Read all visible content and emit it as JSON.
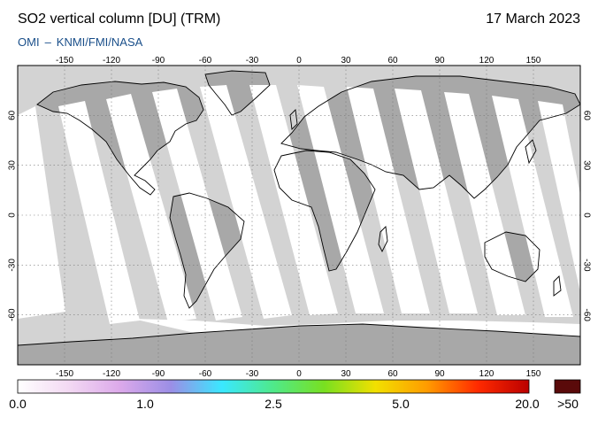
{
  "header": {
    "title": "SO2 vertical column [DU] (TRM)",
    "date": "17 March 2023",
    "credit_left": "OMI",
    "credit_sep": "–",
    "credit_right": "KNMI/FMI/NASA"
  },
  "map": {
    "lon_ticks": [
      "-150",
      "-120",
      "-90",
      "-60",
      "-30",
      "0",
      "30",
      "60",
      "90",
      "120",
      "150"
    ],
    "lat_ticks": [
      "60",
      "30",
      "0",
      "-30",
      "-60"
    ],
    "lon_range": [
      -180,
      180
    ],
    "lat_range": [
      -90,
      90
    ],
    "grid": "dotted",
    "colors": {
      "ocean_no_data": "#d3d3d3",
      "land_no_data": "#a8a8a8",
      "valid_low_so2": "#ffffff",
      "coastline": "#000000"
    }
  },
  "colorbar": {
    "labels": [
      "0.0",
      "1.0",
      "2.5",
      "5.0",
      "20.0"
    ],
    "overflow_label": ">50",
    "overflow_color": "#5a0a0a",
    "stops": [
      "#ffffff",
      "#f3d9f3",
      "#dca9ea",
      "#9b8ee6",
      "#3ae8ff",
      "#4fe98a",
      "#79e020",
      "#f2e000",
      "#ff9c00",
      "#ff2a00",
      "#bb0000"
    ]
  }
}
